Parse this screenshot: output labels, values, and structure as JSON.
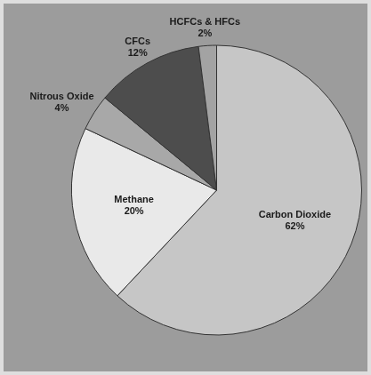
{
  "chart_data": {
    "type": "pie",
    "categories": [
      "Carbon Dioxide",
      "Methane",
      "Nitrous Oxide",
      "CFCs",
      "HCFCs & HFCs"
    ],
    "values": [
      62,
      20,
      4,
      12,
      2
    ],
    "value_labels": [
      "62%",
      "20%",
      "4%",
      "12%",
      "2%"
    ],
    "colors": [
      "#c6c6c6",
      "#e9e9e9",
      "#a8a8a8",
      "#4d4d4d",
      "#a3a3a3"
    ],
    "data_labels": true
  }
}
